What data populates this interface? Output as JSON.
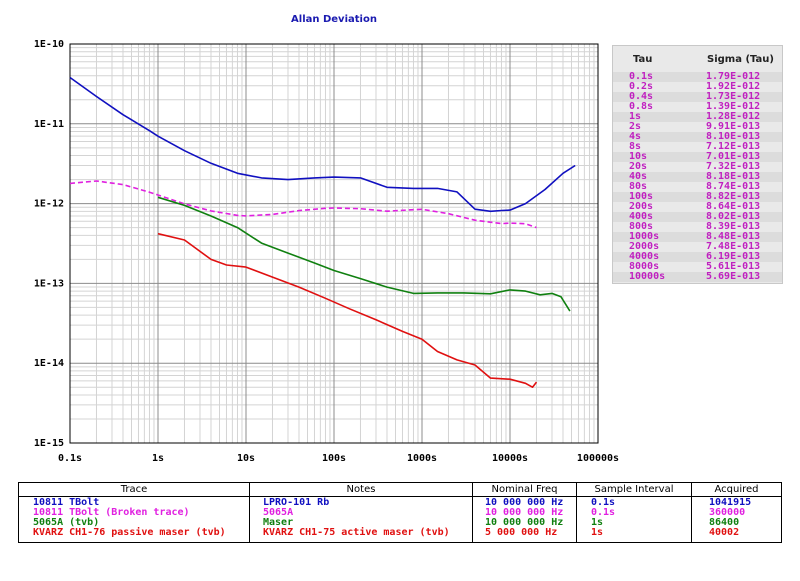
{
  "chart_data": {
    "type": "line",
    "title": "Allan Deviation",
    "xscale": "log",
    "yscale": "log",
    "xlim": [
      0.1,
      100000
    ],
    "ylim": [
      1e-15,
      1e-10
    ],
    "grid": true,
    "x_tick_labels": [
      "0.1s",
      "1s",
      "10s",
      "100s",
      "1000s",
      "10000s",
      "100000s"
    ],
    "y_tick_labels": [
      "1E-10",
      "1E-11",
      "1E-12",
      "1E-13",
      "1E-14",
      "1E-15"
    ],
    "series": [
      {
        "name": "10811 TBolt",
        "color": "#1010c0",
        "dashed": false,
        "points": [
          [
            0.1,
            3.8e-11
          ],
          [
            0.2,
            2.2e-11
          ],
          [
            0.4,
            1.3e-11
          ],
          [
            0.8,
            8.2e-12
          ],
          [
            1,
            7e-12
          ],
          [
            2,
            4.6e-12
          ],
          [
            4,
            3.2e-12
          ],
          [
            8,
            2.4e-12
          ],
          [
            15,
            2.1e-12
          ],
          [
            30,
            2e-12
          ],
          [
            60,
            2.1e-12
          ],
          [
            100,
            2.15e-12
          ],
          [
            200,
            2.1e-12
          ],
          [
            400,
            1.6e-12
          ],
          [
            800,
            1.55e-12
          ],
          [
            1500,
            1.55e-12
          ],
          [
            2500,
            1.4e-12
          ],
          [
            4000,
            8.5e-13
          ],
          [
            6000,
            8e-13
          ],
          [
            8000,
            8.2e-13
          ],
          [
            10000,
            8.3e-13
          ],
          [
            15000,
            1e-12
          ],
          [
            25000,
            1.5e-12
          ],
          [
            40000,
            2.4e-12
          ],
          [
            55000,
            3e-12
          ]
        ]
      },
      {
        "name": "10811 TBolt (Broken trace)",
        "color": "#e020e0",
        "dashed": true,
        "points": [
          [
            0.1,
            1.79e-12
          ],
          [
            0.2,
            1.92e-12
          ],
          [
            0.4,
            1.73e-12
          ],
          [
            0.8,
            1.39e-12
          ],
          [
            1,
            1.28e-12
          ],
          [
            2,
            9.91e-13
          ],
          [
            4,
            8.1e-13
          ],
          [
            8,
            7.12e-13
          ],
          [
            10,
            7.01e-13
          ],
          [
            20,
            7.32e-13
          ],
          [
            40,
            8.18e-13
          ],
          [
            80,
            8.74e-13
          ],
          [
            100,
            8.82e-13
          ],
          [
            200,
            8.64e-13
          ],
          [
            400,
            8.02e-13
          ],
          [
            800,
            8.39e-13
          ],
          [
            1000,
            8.48e-13
          ],
          [
            2000,
            7.48e-13
          ],
          [
            4000,
            6.19e-13
          ],
          [
            8000,
            5.61e-13
          ],
          [
            10000,
            5.69e-13
          ],
          [
            15000,
            5.6e-13
          ],
          [
            20000,
            5e-13
          ]
        ]
      },
      {
        "name": "5065A (tvb)",
        "color": "#108010",
        "dashed": false,
        "points": [
          [
            1,
            1.2e-12
          ],
          [
            2,
            9.5e-13
          ],
          [
            4,
            7e-13
          ],
          [
            8,
            5e-13
          ],
          [
            15,
            3.2e-13
          ],
          [
            30,
            2.4e-13
          ],
          [
            60,
            1.8e-13
          ],
          [
            100,
            1.45e-13
          ],
          [
            200,
            1.15e-13
          ],
          [
            400,
            9e-14
          ],
          [
            800,
            7.5e-14
          ],
          [
            1500,
            7.6e-14
          ],
          [
            3000,
            7.6e-14
          ],
          [
            6000,
            7.4e-14
          ],
          [
            10000,
            8.3e-14
          ],
          [
            15000,
            8e-14
          ],
          [
            22000,
            7.2e-14
          ],
          [
            30000,
            7.5e-14
          ],
          [
            38000,
            6.8e-14
          ],
          [
            48000,
            4.5e-14
          ]
        ]
      },
      {
        "name": "KVARZ CH1-76 passive maser (tvb)",
        "color": "#e01010",
        "dashed": false,
        "points": [
          [
            1,
            4.2e-13
          ],
          [
            2,
            3.5e-13
          ],
          [
            4,
            2e-13
          ],
          [
            6,
            1.7e-13
          ],
          [
            10,
            1.6e-13
          ],
          [
            20,
            1.2e-13
          ],
          [
            40,
            9e-14
          ],
          [
            80,
            6.5e-14
          ],
          [
            150,
            4.8e-14
          ],
          [
            300,
            3.5e-14
          ],
          [
            600,
            2.5e-14
          ],
          [
            1000,
            2e-14
          ],
          [
            1500,
            1.4e-14
          ],
          [
            2500,
            1.1e-14
          ],
          [
            4000,
            9.5e-15
          ],
          [
            6000,
            6.5e-15
          ],
          [
            10000,
            6.3e-15
          ],
          [
            15000,
            5.6e-15
          ],
          [
            18000,
            5e-15
          ],
          [
            20000,
            5.8e-15
          ]
        ]
      }
    ]
  },
  "sigma_table": {
    "header_tau": "Tau",
    "header_sigma": "Sigma (Tau)",
    "color": "#c020c0",
    "rows": [
      {
        "tau": "0.1s",
        "sigma": "1.79E-012"
      },
      {
        "tau": "0.2s",
        "sigma": "1.92E-012"
      },
      {
        "tau": "0.4s",
        "sigma": "1.73E-012"
      },
      {
        "tau": "0.8s",
        "sigma": "1.39E-012"
      },
      {
        "tau": "1s",
        "sigma": "1.28E-012"
      },
      {
        "tau": "2s",
        "sigma": "9.91E-013"
      },
      {
        "tau": "4s",
        "sigma": "8.10E-013"
      },
      {
        "tau": "8s",
        "sigma": "7.12E-013"
      },
      {
        "tau": "10s",
        "sigma": "7.01E-013"
      },
      {
        "tau": "20s",
        "sigma": "7.32E-013"
      },
      {
        "tau": "40s",
        "sigma": "8.18E-013"
      },
      {
        "tau": "80s",
        "sigma": "8.74E-013"
      },
      {
        "tau": "100s",
        "sigma": "8.82E-013"
      },
      {
        "tau": "200s",
        "sigma": "8.64E-013"
      },
      {
        "tau": "400s",
        "sigma": "8.02E-013"
      },
      {
        "tau": "800s",
        "sigma": "8.39E-013"
      },
      {
        "tau": "1000s",
        "sigma": "8.48E-013"
      },
      {
        "tau": "2000s",
        "sigma": "7.48E-013"
      },
      {
        "tau": "4000s",
        "sigma": "6.19E-013"
      },
      {
        "tau": "8000s",
        "sigma": "5.61E-013"
      },
      {
        "tau": "10000s",
        "sigma": "5.69E-013"
      }
    ]
  },
  "legend_table": {
    "headers": {
      "trace": "Trace",
      "notes": "Notes",
      "freq": "Nominal Freq",
      "interval": "Sample Interval",
      "acquired": "Acquired"
    },
    "rows": [
      {
        "trace": "10811 TBolt",
        "notes": "LPRO-101 Rb",
        "freq": "10 000 000 Hz",
        "interval": "0.1s",
        "acquired": "1041915",
        "color": "#1010c0"
      },
      {
        "trace": "10811 TBolt (Broken trace)",
        "notes": "5065A",
        "freq": "10 000 000 Hz",
        "interval": "0.1s",
        "acquired": "360000",
        "color": "#e020e0"
      },
      {
        "trace": "5065A (tvb)",
        "notes": "Maser",
        "freq": "10 000 000 Hz",
        "interval": "1s",
        "acquired": "86400",
        "color": "#108010"
      },
      {
        "trace": "KVARZ CH1-76 passive maser (tvb)",
        "notes": "KVARZ CH1-75 active maser (tvb)",
        "freq": "5 000 000 Hz",
        "interval": "1s",
        "acquired": "40002",
        "color": "#e01010"
      }
    ]
  }
}
